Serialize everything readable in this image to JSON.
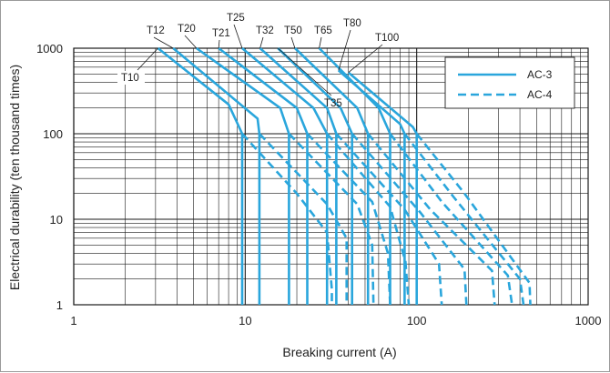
{
  "chart_data": {
    "type": "line",
    "title": "",
    "xlabel": "Breaking current (A)",
    "ylabel": "Electrical durability (ten thousand times)",
    "xscale": "log",
    "yscale": "log",
    "xlim": [
      1,
      1000
    ],
    "ylim": [
      1,
      1000
    ],
    "x_ticks": [
      "1",
      "10",
      "100",
      "1000"
    ],
    "y_ticks": [
      "1",
      "10",
      "100",
      "1000"
    ],
    "grid": true,
    "legend_position": "top-right",
    "legend": [
      {
        "name": "AC-3",
        "style": "solid"
      },
      {
        "name": "AC-4",
        "style": "dashed"
      }
    ],
    "color": "#2aa6dc",
    "series": [
      {
        "name": "T10",
        "ac3": [
          [
            3.1,
            1000
          ],
          [
            8.0,
            220
          ],
          [
            9.6,
            100
          ],
          [
            9.6,
            1
          ]
        ],
        "ac4": [
          [
            9.6,
            100
          ],
          [
            20,
            20
          ],
          [
            30,
            7
          ],
          [
            32,
            1.5
          ],
          [
            32,
            1
          ]
        ]
      },
      {
        "name": "T12",
        "ac3": [
          [
            3.8,
            1000
          ],
          [
            11.8,
            150
          ],
          [
            12.1,
            100
          ],
          [
            12.1,
            1
          ]
        ],
        "ac4": [
          [
            12.1,
            100
          ],
          [
            30,
            15
          ],
          [
            39,
            6
          ],
          [
            39,
            1
          ]
        ]
      },
      {
        "name": "T20",
        "ac3": [
          [
            5.2,
            1000
          ],
          [
            16,
            200
          ],
          [
            18,
            100
          ],
          [
            18,
            1
          ]
        ],
        "ac4": [
          [
            18,
            100
          ],
          [
            45,
            15
          ],
          [
            55,
            5
          ],
          [
            56,
            1
          ]
        ]
      },
      {
        "name": "T21",
        "ac3": [
          [
            7.0,
            1000
          ],
          [
            20,
            200
          ],
          [
            23,
            100
          ],
          [
            23,
            1
          ]
        ],
        "ac4": [
          [
            23,
            100
          ],
          [
            55,
            16
          ],
          [
            68,
            4
          ],
          [
            70,
            1
          ]
        ]
      },
      {
        "name": "T25",
        "ac3": [
          [
            9.6,
            1000
          ],
          [
            25,
            200
          ],
          [
            30,
            100
          ],
          [
            30,
            1
          ]
        ],
        "ac4": [
          [
            30,
            100
          ],
          [
            70,
            14
          ],
          [
            86,
            3.2
          ],
          [
            90,
            1
          ]
        ]
      },
      {
        "name": "T32",
        "ac3": [
          [
            12.2,
            1000
          ],
          [
            30,
            200
          ],
          [
            34,
            100
          ],
          [
            34,
            1
          ]
        ],
        "ac4": [
          [
            34,
            100
          ],
          [
            85,
            13
          ],
          [
            135,
            3
          ],
          [
            140,
            1
          ]
        ]
      },
      {
        "name": "T35",
        "ac3": [
          [
            15.5,
            1000
          ],
          [
            36,
            200
          ],
          [
            42,
            100
          ],
          [
            42,
            1
          ]
        ],
        "ac4": [
          [
            42,
            100
          ],
          [
            105,
            12
          ],
          [
            190,
            2.6
          ],
          [
            195,
            1
          ]
        ]
      },
      {
        "name": "T50",
        "ac3": [
          [
            19.5,
            1000
          ],
          [
            45,
            200
          ],
          [
            52,
            100
          ],
          [
            52,
            1
          ]
        ],
        "ac4": [
          [
            52,
            100
          ],
          [
            120,
            13
          ],
          [
            275,
            2.5
          ],
          [
            285,
            1
          ]
        ]
      },
      {
        "name": "T65",
        "ac3": [
          [
            27,
            1000
          ],
          [
            60,
            200
          ],
          [
            70,
            100
          ],
          [
            70,
            1
          ]
        ],
        "ac4": [
          [
            70,
            100
          ],
          [
            140,
            16
          ],
          [
            340,
            2.2
          ],
          [
            360,
            1
          ]
        ]
      },
      {
        "name": "T80",
        "ac3": [
          [
            35,
            550
          ],
          [
            80,
            130
          ],
          [
            85,
            100
          ],
          [
            85,
            1
          ]
        ],
        "ac4": [
          [
            85,
            100
          ],
          [
            165,
            18
          ],
          [
            400,
            2
          ],
          [
            420,
            1
          ]
        ]
      },
      {
        "name": "T100",
        "ac3": [
          [
            40,
            520
          ],
          [
            95,
            120
          ],
          [
            100,
            100
          ],
          [
            100,
            1
          ]
        ],
        "ac4": [
          [
            100,
            100
          ],
          [
            190,
            20
          ],
          [
            455,
            1.8
          ],
          [
            460,
            1
          ]
        ]
      }
    ]
  }
}
